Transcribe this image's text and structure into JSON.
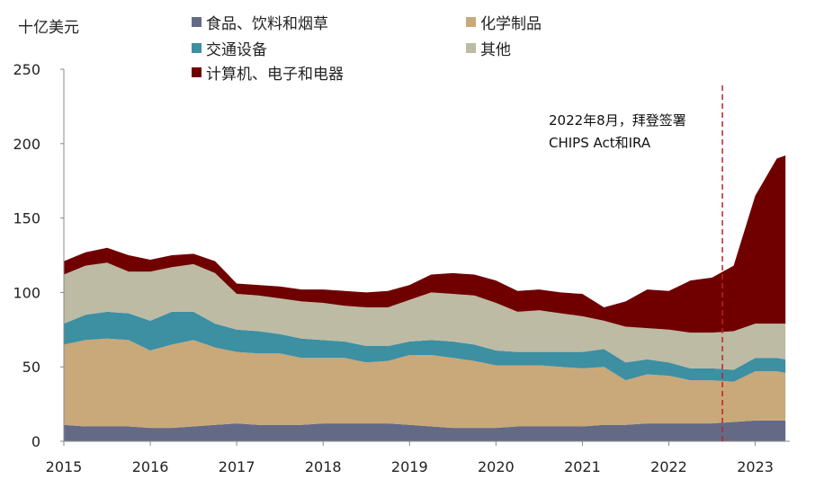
{
  "chart_data": {
    "type": "area",
    "stacked": true,
    "unit_label": "十亿美元",
    "ylim": [
      0,
      250
    ],
    "yticks": [
      0,
      50,
      100,
      150,
      200,
      250
    ],
    "xlim": [
      2015.0,
      2023.4
    ],
    "xticks": [
      2015,
      2016,
      2017,
      2018,
      2019,
      2020,
      2021,
      2022,
      2023
    ],
    "x": [
      2015.0,
      2015.25,
      2015.5,
      2015.75,
      2016.0,
      2016.25,
      2016.5,
      2016.75,
      2017.0,
      2017.25,
      2017.5,
      2017.75,
      2018.0,
      2018.25,
      2018.5,
      2018.75,
      2019.0,
      2019.25,
      2019.5,
      2019.75,
      2020.0,
      2020.25,
      2020.5,
      2020.75,
      2021.0,
      2021.25,
      2021.5,
      2021.75,
      2022.0,
      2022.25,
      2022.5,
      2022.75,
      2023.0,
      2023.25,
      2023.35
    ],
    "series": [
      {
        "name": "食品、饮料和烟草",
        "color": "#646a86",
        "values": [
          11,
          10,
          10,
          10,
          9,
          9,
          10,
          11,
          12,
          11,
          11,
          11,
          12,
          12,
          12,
          12,
          11,
          10,
          9,
          9,
          9,
          10,
          10,
          10,
          10,
          11,
          11,
          12,
          12,
          12,
          12,
          13,
          14,
          14,
          14
        ]
      },
      {
        "name": "化学制品",
        "color": "#c9a87a",
        "values": [
          54,
          58,
          59,
          58,
          52,
          56,
          58,
          52,
          48,
          48,
          48,
          45,
          44,
          44,
          41,
          42,
          47,
          48,
          47,
          45,
          42,
          41,
          41,
          40,
          39,
          39,
          30,
          33,
          32,
          29,
          29,
          27,
          33,
          33,
          32
        ]
      },
      {
        "name": "交通设备",
        "color": "#3d8fa2",
        "values": [
          14,
          17,
          18,
          18,
          20,
          22,
          19,
          16,
          15,
          15,
          13,
          13,
          12,
          11,
          11,
          10,
          9,
          10,
          11,
          11,
          10,
          9,
          9,
          10,
          11,
          12,
          12,
          10,
          9,
          8,
          8,
          8,
          9,
          9,
          9
        ]
      },
      {
        "name": "其他",
        "color": "#bdbba4",
        "values": [
          33,
          33,
          33,
          28,
          33,
          30,
          32,
          34,
          24,
          24,
          24,
          25,
          25,
          24,
          26,
          26,
          28,
          32,
          32,
          33,
          32,
          27,
          28,
          26,
          24,
          19,
          24,
          21,
          22,
          24,
          24,
          26,
          23,
          23,
          24
        ]
      },
      {
        "name": "计算机、电子和电器",
        "color": "#700000",
        "values": [
          9,
          9,
          10,
          11,
          8,
          8,
          7,
          8,
          7,
          7,
          8,
          8,
          9,
          10,
          10,
          11,
          10,
          12,
          14,
          14,
          15,
          14,
          14,
          14,
          15,
          9,
          17,
          26,
          26,
          35,
          37,
          44,
          86,
          111,
          113
        ]
      }
    ],
    "annotation": {
      "x": 2022.62,
      "line1": "2022年8月，拜登签署",
      "line2": "CHIPS Act和IRA",
      "line_color": "#c0202a"
    }
  }
}
